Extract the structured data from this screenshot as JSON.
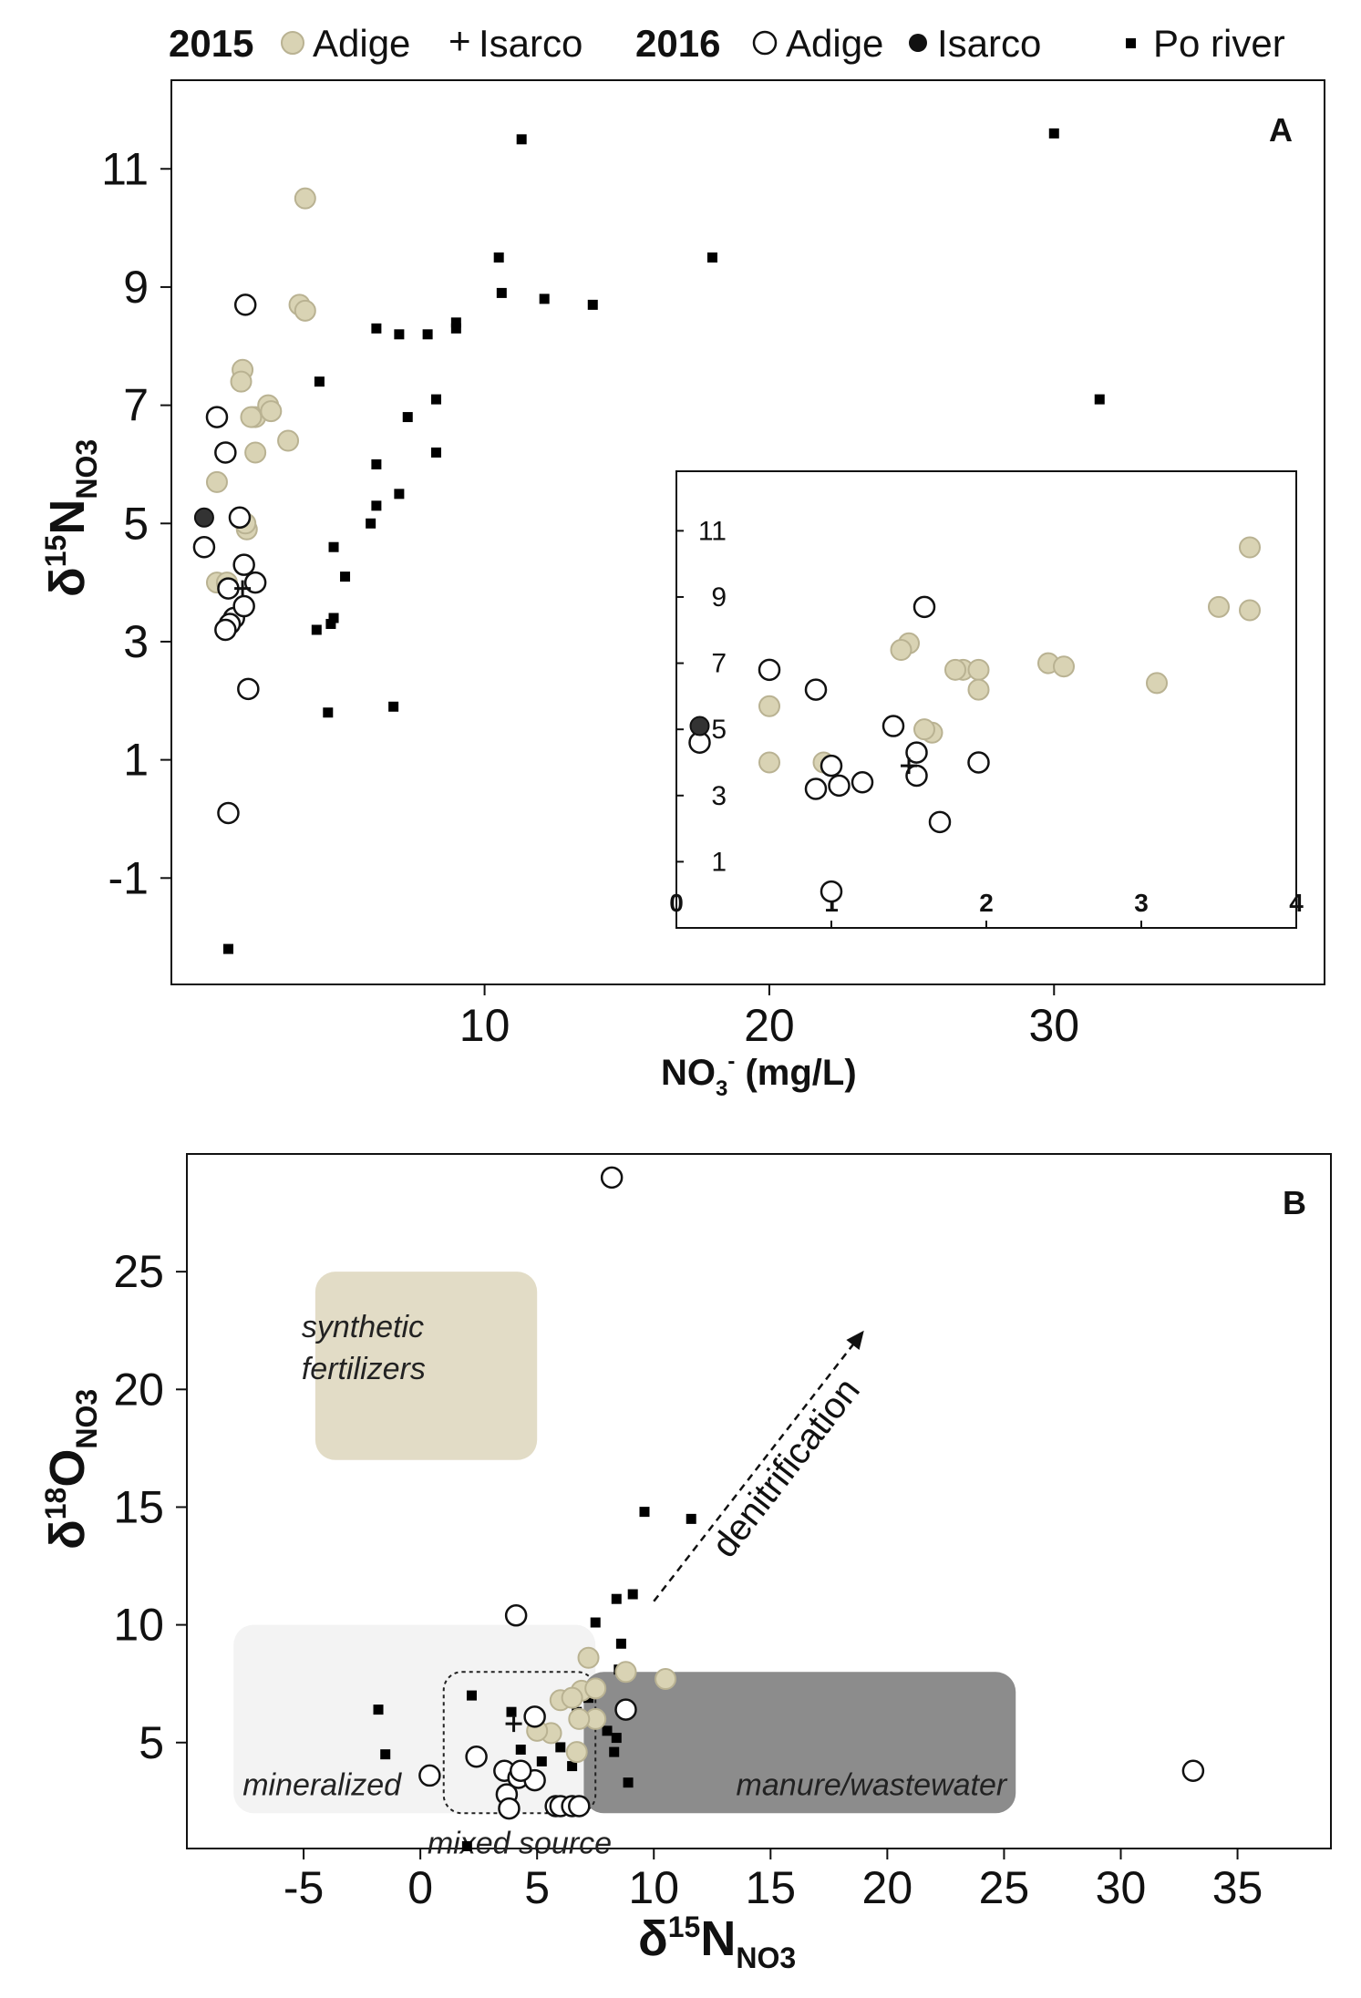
{
  "legend": {
    "year_2015": "2015",
    "year_2016": "2016",
    "adige_2015": "Adige",
    "isarco_2015": "Isarco",
    "adige_2016": "Adige",
    "isarco_2016": "Isarco",
    "po_river": "Po river",
    "colors": {
      "adige_2015_fill": "#d9d3b4",
      "adige_2015_stroke": "#b9b292",
      "po_fill": "#000000"
    }
  },
  "chart_data": [
    {
      "type": "scatter",
      "panel_label": "A",
      "xlabel": "NO3- (mg/L)",
      "xlabel_parts": {
        "main": "NO",
        "sub": "3",
        "sup": "-",
        "rest": " (mg/L)"
      },
      "ylabel_parts": {
        "delta": "δ",
        "sup": "15",
        "main": "N",
        "sub": "NO3"
      },
      "xlim": [
        -1,
        39.5
      ],
      "ylim": [
        -2.8,
        12.5
      ],
      "xticks": [
        10,
        20,
        30
      ],
      "yticks": [
        -1,
        1,
        3,
        5,
        7,
        9,
        11
      ],
      "series": [
        {
          "name": "Po river",
          "x": [
            1,
            11.3,
            30,
            31.6,
            18,
            10.5,
            10.6,
            12.1,
            13.8,
            6.2,
            7,
            8,
            9,
            9,
            4.2,
            8.3,
            7.3,
            8.3,
            6.2,
            6.2,
            7,
            6,
            4.7,
            5.1,
            4.1,
            4.6,
            4.7,
            4.5,
            6.8
          ],
          "y": [
            -2.2,
            11.5,
            11.6,
            7.1,
            9.5,
            9.5,
            8.9,
            8.8,
            8.7,
            8.3,
            8.2,
            8.2,
            8.3,
            8.4,
            7.4,
            7.1,
            6.8,
            6.2,
            6.0,
            5.3,
            5.5,
            5.0,
            4.6,
            4.1,
            3.2,
            3.3,
            3.4,
            1.8,
            1.9
          ]
        },
        {
          "name": "Adige 2015",
          "x": [
            3.7,
            3.5,
            3.7,
            1.5,
            1.45,
            1.85,
            1.95,
            1.95,
            2.4,
            2.5,
            1.8,
            3.1,
            0.6,
            0.6,
            1.65,
            1.6,
            0.95
          ],
          "y": [
            10.5,
            8.7,
            8.6,
            7.6,
            7.4,
            6.8,
            6.8,
            6.2,
            7.0,
            6.9,
            6.8,
            6.4,
            5.7,
            4.0,
            4.9,
            5.0,
            4.0
          ]
        },
        {
          "name": "Adige 2016",
          "x": [
            1.6,
            0.6,
            0.9,
            1.4,
            1.55,
            1.0,
            1.2,
            1.05,
            0.9,
            1.95,
            1.7,
            1.0,
            0.15,
            1.55
          ],
          "y": [
            8.7,
            6.8,
            6.2,
            5.1,
            4.3,
            3.9,
            3.4,
            3.3,
            3.2,
            4.0,
            2.2,
            0.1,
            4.6,
            3.6
          ]
        },
        {
          "name": "Isarco 2015",
          "x": [
            1.5
          ],
          "y": [
            3.9
          ]
        },
        {
          "name": "Isarco 2016",
          "x": [
            0.15
          ],
          "y": [
            5.1
          ]
        }
      ],
      "inset": {
        "xlim": [
          0,
          4
        ],
        "ylim": [
          -1,
          12.8
        ],
        "xticks": [
          0,
          1,
          2,
          3,
          4
        ],
        "yticks": [
          1,
          3,
          5,
          7,
          9,
          11
        ],
        "xtick_labels": [
          "0",
          "1",
          "2",
          "3",
          "4"
        ],
        "ytick_labels": [
          "1",
          "3",
          "5",
          "7",
          "9",
          "11"
        ]
      }
    },
    {
      "type": "scatter",
      "panel_label": "B",
      "xlabel_parts": {
        "delta": "δ",
        "sup": "15",
        "main": "N",
        "sub": "NO3"
      },
      "ylabel_parts": {
        "delta": "δ",
        "sup": "18",
        "main": "O",
        "sub": "NO3"
      },
      "xlim": [
        -10,
        39
      ],
      "ylim": [
        0.5,
        30
      ],
      "xticks": [
        -5,
        0,
        5,
        10,
        15,
        20,
        25,
        30,
        35
      ],
      "yticks": [
        5,
        10,
        15,
        20,
        25
      ],
      "regions": [
        {
          "name": "synthetic fertilizers",
          "label_lines": [
            "synthetic",
            "fertilizers"
          ],
          "x": [
            -4.5,
            5
          ],
          "y": [
            17,
            25
          ],
          "color": "#e2dcc6"
        },
        {
          "name": "mineralized",
          "label": "mineralized",
          "x": [
            -8,
            7.5
          ],
          "y": [
            2,
            10
          ],
          "color": "#f3f3f3"
        },
        {
          "name": "manure/wastewater",
          "label": "manure/wastewater",
          "x": [
            7,
            25.5
          ],
          "y": [
            2,
            8
          ],
          "color": "#8c8c8c"
        },
        {
          "name": "mixed source",
          "label": "mixed source",
          "x": [
            1,
            7.5
          ],
          "y": [
            2,
            8
          ],
          "color": "none"
        }
      ],
      "arrow": {
        "label": "denitrification",
        "from": [
          10,
          11
        ],
        "to": [
          19,
          22.5
        ]
      },
      "series": [
        {
          "name": "Po river",
          "x": [
            9.6,
            11.6,
            8.4,
            9.1,
            8.6,
            7.5,
            8.5,
            2.2,
            -1.8,
            -1.5,
            3.9,
            4.3,
            5.2,
            6.0,
            6.7,
            8.0,
            8.4,
            8.3,
            8.9,
            5.6,
            6.2,
            6.5,
            7.2,
            2.0
          ],
          "y": [
            14.8,
            14.5,
            11.1,
            11.3,
            9.2,
            10.1,
            8.1,
            7.0,
            6.4,
            4.5,
            6.3,
            4.7,
            4.2,
            4.8,
            6.3,
            5.5,
            5.2,
            4.6,
            3.3,
            2.2,
            2.5,
            4.0,
            6.9,
            0.6
          ]
        },
        {
          "name": "Adige 2015",
          "x": [
            7.2,
            8.8,
            10.5,
            6.9,
            7.5,
            6.0,
            6.5,
            7.5,
            6.8,
            5.6,
            6.7,
            5.0
          ],
          "y": [
            8.6,
            8.0,
            7.7,
            7.2,
            7.3,
            6.8,
            6.9,
            6.0,
            6.0,
            5.4,
            4.6,
            5.5
          ]
        },
        {
          "name": "Adige 2016",
          "x": [
            8.2,
            4.1,
            4.9,
            8.8,
            2.4,
            0.4,
            3.6,
            4.2,
            4.9,
            3.7,
            3.8,
            4.3,
            5.8,
            6.0,
            6.5,
            6.8,
            33.1
          ],
          "y": [
            29.0,
            10.4,
            6.1,
            6.4,
            4.4,
            3.6,
            3.8,
            3.5,
            3.4,
            2.8,
            2.2,
            3.8,
            2.3,
            2.3,
            2.3,
            2.3,
            3.8
          ]
        },
        {
          "name": "Isarco 2015",
          "x": [
            4.0
          ],
          "y": [
            5.8
          ]
        }
      ]
    }
  ]
}
